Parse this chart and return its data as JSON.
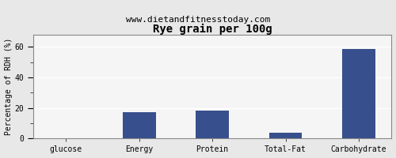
{
  "title": "Rye grain per 100g",
  "subtitle": "www.dietandfitnesstoday.com",
  "categories": [
    "glucose",
    "Energy",
    "Protein",
    "Total-Fat",
    "Carbohydrate"
  ],
  "values": [
    0.0,
    17.0,
    18.5,
    4.0,
    58.5
  ],
  "bar_color": "#374f8c",
  "ylabel": "Percentage of RDH (%)",
  "ylim": [
    0,
    68
  ],
  "yticks": [
    0,
    20,
    40,
    60
  ],
  "background_color": "#e8e8e8",
  "plot_bg_color": "#f5f5f5",
  "grid_color": "#ffffff",
  "title_fontsize": 10,
  "subtitle_fontsize": 8,
  "tick_fontsize": 7,
  "ylabel_fontsize": 7,
  "bar_width": 0.45
}
